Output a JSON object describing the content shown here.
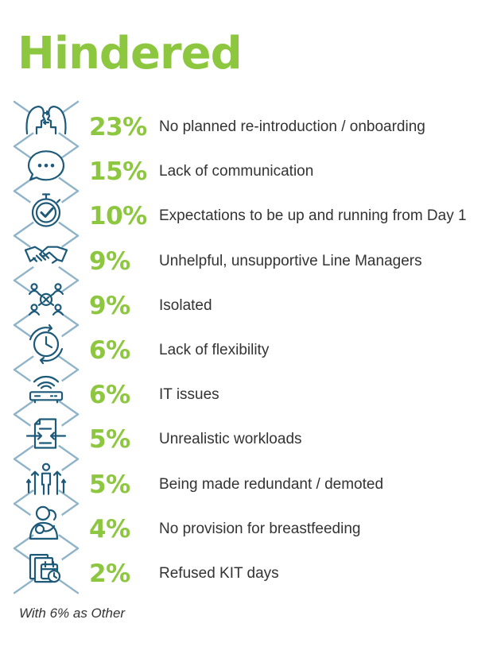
{
  "title": "Hindered",
  "footnote": "With 6% as Other",
  "colors": {
    "accent": "#8dc63f",
    "icon": "#1d5a7a",
    "chain": "#8fb3c9",
    "text": "#333333"
  },
  "chart_data": {
    "type": "table",
    "title": "Hindered",
    "unit": "%",
    "rows": [
      {
        "value": 23,
        "label": "No planned re-introduction / onboarding",
        "icon": "two-heads-icon"
      },
      {
        "value": 15,
        "label": "Lack of communication",
        "icon": "speech-bubble-icon"
      },
      {
        "value": 10,
        "label": "Expectations to be up and running from Day 1",
        "icon": "stopwatch-check-icon"
      },
      {
        "value": 9,
        "label": "Unhelpful, unsupportive Line Managers",
        "icon": "handshake-icon"
      },
      {
        "value": 9,
        "label": "Isolated",
        "icon": "isolated-people-icon"
      },
      {
        "value": 6,
        "label": "Lack of flexibility",
        "icon": "clock-cycle-icon"
      },
      {
        "value": 6,
        "label": "IT issues",
        "icon": "router-icon"
      },
      {
        "value": 5,
        "label": "Unrealistic workloads",
        "icon": "document-compress-icon"
      },
      {
        "value": 5,
        "label": "Being made redundant / demoted",
        "icon": "person-arrows-icon"
      },
      {
        "value": 4,
        "label": "No provision for breastfeeding",
        "icon": "mother-baby-icon"
      },
      {
        "value": 2,
        "label": "Refused KIT days",
        "icon": "calendar-files-icon"
      }
    ],
    "note": "With 6% as Other"
  }
}
